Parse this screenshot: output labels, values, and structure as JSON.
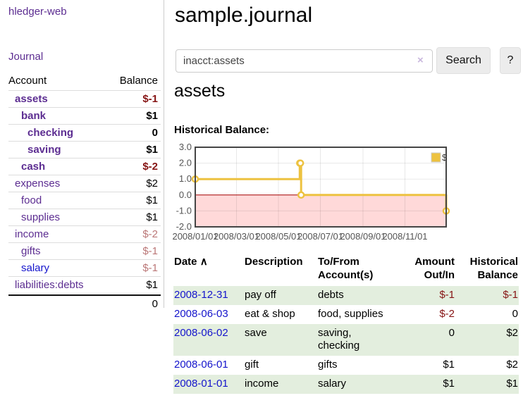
{
  "colors": {
    "purple": "#5c2d91",
    "link_blue": "#1414cc",
    "neg_strong": "#861414",
    "neg_soft": "#bb7777",
    "stripe_green": "#e3eede",
    "chart_line": "#edc240",
    "chart_negative_fill": "#ffd9d9",
    "chart_zero_line": "#a40000",
    "axis_text": "#545454"
  },
  "sidebar": {
    "brand": "hledger-web",
    "journal_link": "Journal",
    "header": {
      "account": "Account",
      "balance": "Balance"
    },
    "accounts": [
      {
        "name": "assets",
        "balance": "$-1",
        "indent": 0,
        "bold": true,
        "link": "visited",
        "bal_class": "neg"
      },
      {
        "name": "bank",
        "balance": "$1",
        "indent": 1,
        "bold": true,
        "link": "visited",
        "bal_class": ""
      },
      {
        "name": "checking",
        "balance": "0",
        "indent": 2,
        "bold": true,
        "link": "visited",
        "bal_class": ""
      },
      {
        "name": "saving",
        "balance": "$1",
        "indent": 2,
        "bold": true,
        "link": "visited",
        "bal_class": ""
      },
      {
        "name": "cash",
        "balance": "$-2",
        "indent": 1,
        "bold": true,
        "link": "visited",
        "bal_class": "neg"
      },
      {
        "name": "expenses",
        "balance": "$2",
        "indent": 0,
        "bold": false,
        "link": "visited",
        "bal_class": ""
      },
      {
        "name": "food",
        "balance": "$1",
        "indent": 1,
        "bold": false,
        "link": "visited",
        "bal_class": ""
      },
      {
        "name": "supplies",
        "balance": "$1",
        "indent": 1,
        "bold": false,
        "link": "visited",
        "bal_class": ""
      },
      {
        "name": "income",
        "balance": "$-2",
        "indent": 0,
        "bold": false,
        "link": "visited",
        "bal_class": "negsoft"
      },
      {
        "name": "gifts",
        "balance": "$-1",
        "indent": 1,
        "bold": false,
        "link": "visited",
        "bal_class": "negsoft"
      },
      {
        "name": "salary",
        "balance": "$-1",
        "indent": 1,
        "bold": false,
        "link": "new",
        "bal_class": "negsoft"
      },
      {
        "name": "liabilities:debts",
        "balance": "$1",
        "indent": 0,
        "bold": false,
        "link": "visited",
        "bal_class": ""
      }
    ],
    "total": "0"
  },
  "main": {
    "title": "sample.journal",
    "search": {
      "value": "inacct:assets",
      "clear_label": "×",
      "search_button": "Search",
      "help_button": "?"
    },
    "account_heading": "assets",
    "section_label": "Historical Balance:"
  },
  "chart_data": {
    "type": "line",
    "step": true,
    "title": "Historical Balance:",
    "x_range": [
      "2008-01-01",
      "2008-12-31"
    ],
    "ylim": [
      -2,
      3
    ],
    "y_ticks": [
      "3.0",
      "2.0",
      "1.0",
      "0.0",
      "-1.0",
      "-2.0"
    ],
    "x_ticks": [
      "2008/01/01",
      "2008/03/01",
      "2008/05/01",
      "2008/07/01",
      "2008/09/01",
      "2008/11/01"
    ],
    "grid": true,
    "legend": {
      "label": "$",
      "position": "top-right"
    },
    "series": [
      {
        "name": "$",
        "points": [
          [
            "2008-01-01",
            1
          ],
          [
            "2008-06-01",
            2
          ],
          [
            "2008-06-02",
            2
          ],
          [
            "2008-06-03",
            0
          ],
          [
            "2008-12-31",
            -1
          ]
        ]
      }
    ]
  },
  "register": {
    "columns": {
      "date": "Date",
      "sort_arrow": "∧",
      "description": "Description",
      "accounts": "To/From Account(s)",
      "amount": "Amount Out/In",
      "balance": "Historical Balance"
    },
    "rows": [
      {
        "date": "2008-12-31",
        "description": "pay off",
        "accounts": "debts",
        "amount": "$-1",
        "amount_neg": true,
        "balance": "$-1",
        "balance_neg": true
      },
      {
        "date": "2008-06-03",
        "description": "eat & shop",
        "accounts": "food, supplies",
        "amount": "$-2",
        "amount_neg": true,
        "balance": "0",
        "balance_neg": false
      },
      {
        "date": "2008-06-02",
        "description": "save",
        "accounts": "saving, checking",
        "amount": "0",
        "amount_neg": false,
        "balance": "$2",
        "balance_neg": false
      },
      {
        "date": "2008-06-01",
        "description": "gift",
        "accounts": "gifts",
        "amount": "$1",
        "amount_neg": false,
        "balance": "$2",
        "balance_neg": false
      },
      {
        "date": "2008-01-01",
        "description": "income",
        "accounts": "salary",
        "amount": "$1",
        "amount_neg": false,
        "balance": "$1",
        "balance_neg": false
      }
    ]
  }
}
